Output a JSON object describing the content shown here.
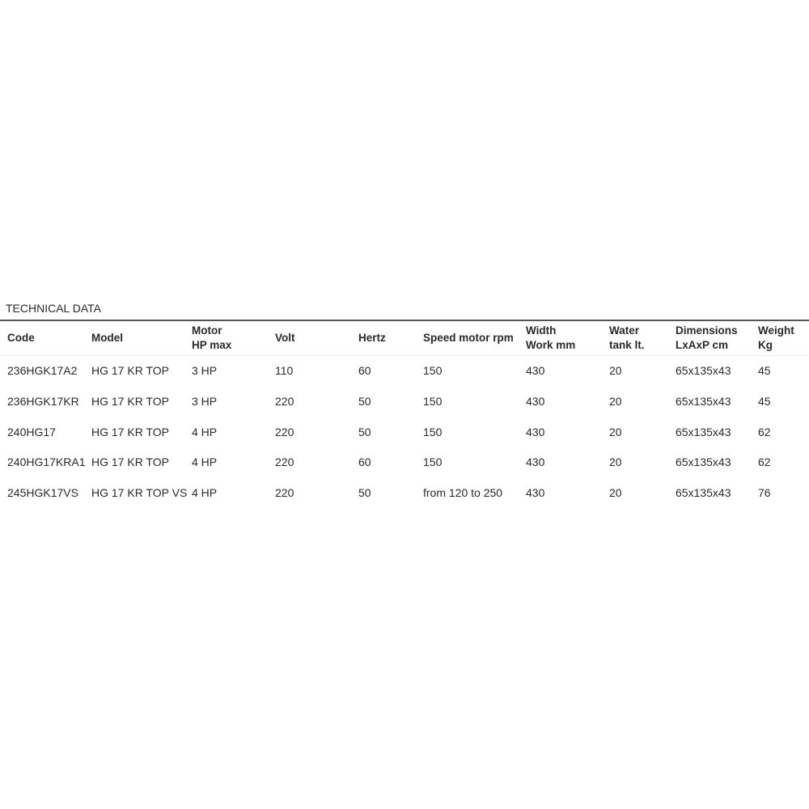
{
  "title": "TECHNICAL DATA",
  "table": {
    "headers": [
      "Code",
      "Model",
      "Motor\nHP max",
      "Volt",
      "Hertz",
      "Speed motor rpm",
      "Width\nWork mm",
      "Water\ntank lt.",
      "Dimensions\nLxAxP cm",
      "Weight\nKg"
    ],
    "rows": [
      [
        "236HGK17A2",
        "HG 17 KR TOP",
        "3 HP",
        "110",
        "60",
        "150",
        "430",
        "20",
        "65x135x43",
        "45"
      ],
      [
        "236HGK17KR",
        "HG 17 KR TOP",
        "3 HP",
        "220",
        "50",
        "150",
        "430",
        "20",
        "65x135x43",
        "45"
      ],
      [
        "240HG17",
        "HG 17 KR TOP",
        "4 HP",
        "220",
        "50",
        "150",
        "430",
        "20",
        "65x135x43",
        "62"
      ],
      [
        "240HG17KRA1",
        "HG 17 KR TOP",
        "4 HP",
        "220",
        "60",
        "150",
        "430",
        "20",
        "65x135x43",
        "62"
      ],
      [
        "245HGK17VS",
        "HG 17 KR TOP VS",
        "4 HP",
        "220",
        "50",
        "from 120 to 250",
        "430",
        "20",
        "65x135x43",
        "76"
      ]
    ]
  }
}
